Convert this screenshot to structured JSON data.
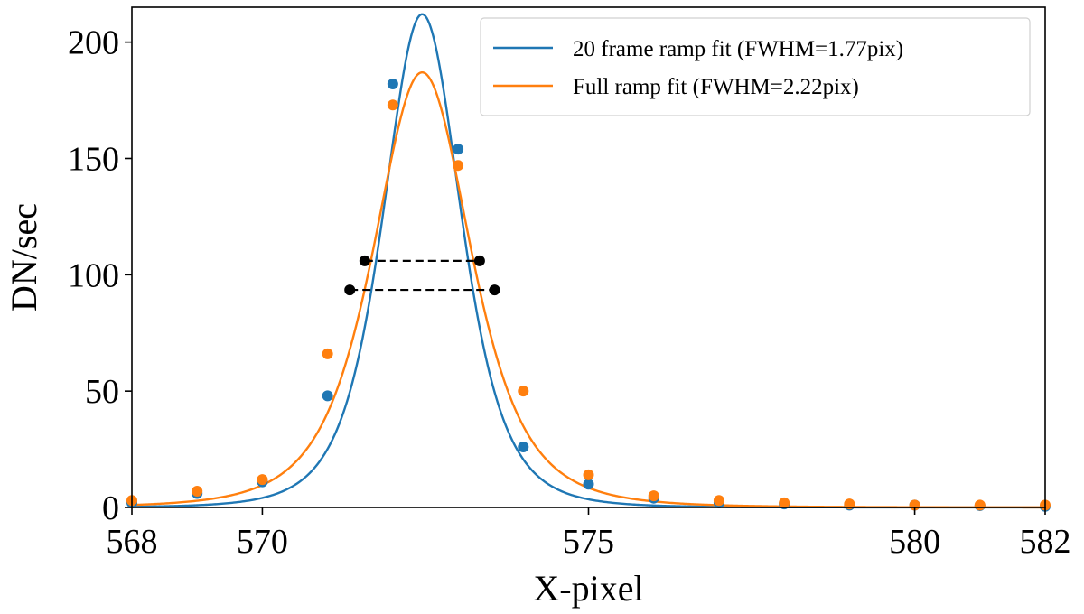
{
  "chart_data": {
    "type": "line",
    "xlabel": "X-pixel",
    "ylabel": "DN/sec",
    "xlim": [
      568,
      582
    ],
    "ylim": [
      0,
      215
    ],
    "xticks": [
      568,
      570,
      575,
      580,
      582
    ],
    "yticks": [
      0,
      50,
      100,
      150,
      200
    ],
    "grid": false,
    "legend_position": "top-right",
    "series": [
      {
        "name": "20 frame ramp fit (FWHM=1.77pix)",
        "color": "#1f77b4",
        "fit": {
          "model": "moffat",
          "amplitude": 212,
          "center": 572.45,
          "alpha": 1.25,
          "beta": 2.5,
          "fwhm": 1.77
        },
        "points_x": [
          568,
          569,
          570,
          571,
          572,
          573,
          574,
          575,
          576,
          577,
          578,
          579,
          580,
          581,
          582
        ],
        "points_y": [
          2,
          6,
          11,
          48,
          182,
          154,
          26,
          10,
          4,
          2,
          1.5,
          1,
          1,
          0.8,
          0.5
        ],
        "half_max_marker_x": [
          571.57,
          573.33
        ],
        "half_max_marker_y": 106
      },
      {
        "name": "Full ramp fit (FWHM=2.22pix)",
        "color": "#ff7f0e",
        "fit": {
          "model": "moffat",
          "amplitude": 187,
          "center": 572.45,
          "alpha": 1.45,
          "beta": 2.2,
          "fwhm": 2.22
        },
        "points_x": [
          568,
          569,
          570,
          571,
          572,
          573,
          574,
          575,
          576,
          577,
          578,
          579,
          580,
          581,
          582
        ],
        "points_y": [
          3,
          7,
          12,
          66,
          173,
          147,
          50,
          14,
          5,
          3,
          2,
          1.5,
          1,
          1,
          1
        ],
        "half_max_marker_x": [
          571.34,
          573.56
        ],
        "half_max_marker_y": 93.5
      }
    ]
  }
}
